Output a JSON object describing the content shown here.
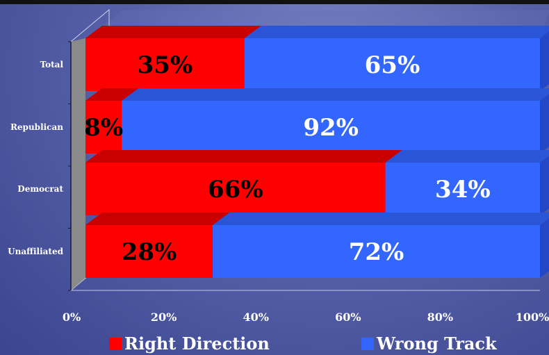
{
  "colors": {
    "right_direction": "#ff0000",
    "right_direction_top": "#c80000",
    "wrong_track": "#3366ff",
    "wrong_track_top": "#2a55d6",
    "wall": "#8a8a8a",
    "value_text_dark": "#000000",
    "value_text_light": "#ffffff"
  },
  "chart_data": {
    "type": "bar",
    "orientation": "horizontal",
    "stacked": true,
    "percent_stacked": true,
    "categories": [
      "Total",
      "Republican",
      "Democrat",
      "Unaffiliated"
    ],
    "series": [
      {
        "name": "Right Direction",
        "values": [
          35,
          8,
          66,
          28
        ],
        "labels": [
          "35%",
          "8%",
          "66%",
          "28%"
        ]
      },
      {
        "name": "Wrong Track",
        "values": [
          65,
          92,
          34,
          72
        ],
        "labels": [
          "65%",
          "92%",
          "34%",
          "72%"
        ]
      }
    ],
    "x_ticks": [
      "0%",
      "20%",
      "40%",
      "60%",
      "80%",
      "100%"
    ],
    "xlim": [
      0,
      100
    ],
    "legend_position": "bottom",
    "grid": false
  }
}
